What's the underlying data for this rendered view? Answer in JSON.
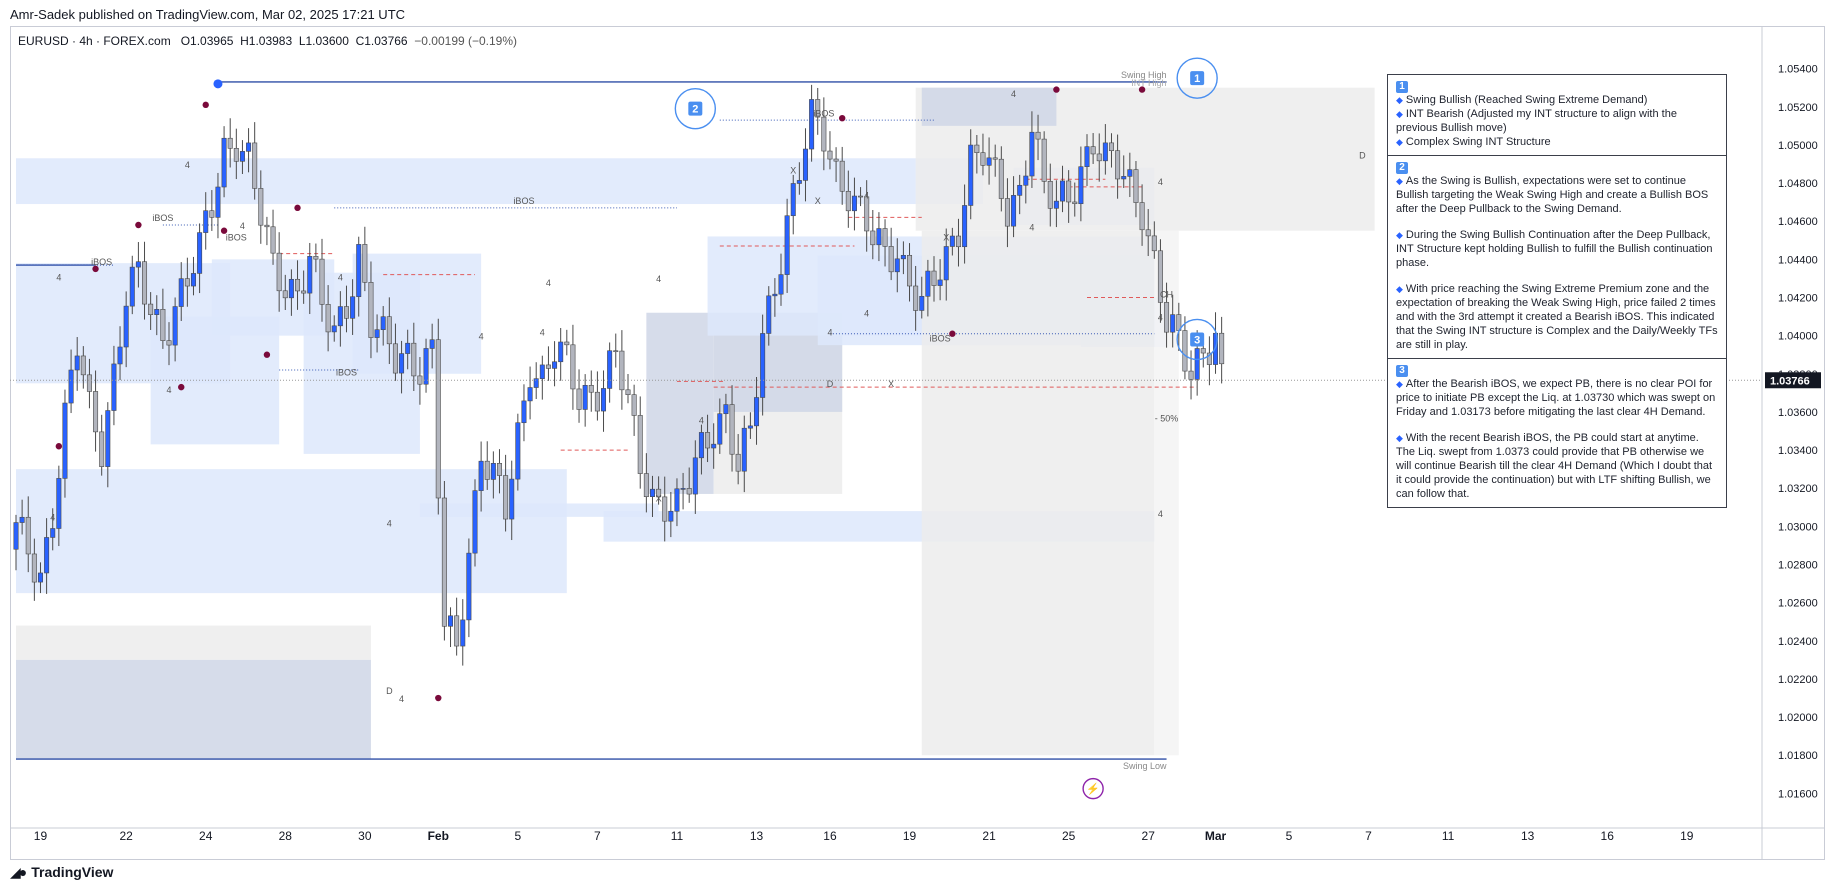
{
  "publisher": "Amr-Sadek published on TradingView.com, Mar 02, 2025 17:21 UTC",
  "legend": {
    "symbol": "EURUSD · 4h · FOREX.com",
    "open": "O1.03965",
    "high": "H1.03983",
    "low": "L1.03600",
    "close": "C1.03766",
    "change": "−0.00199 (−0.19%)"
  },
  "footer": {
    "brand": "TradingView",
    "brand_icon": "tradingview-logo-icon"
  },
  "colors": {
    "bull": "#2962ff",
    "bear": "#b2b5be",
    "zone_blue": "#dde7fb",
    "zone_grey": "#ececec",
    "swing_point": "#7a0a3b",
    "level_line": "#2e4ea6",
    "price_tag": "#131722"
  },
  "chart_data": {
    "type": "candlestick",
    "symbol": "EURUSD",
    "timeframe": "4h",
    "y_axis": {
      "min": 1.0145,
      "max": 1.0555,
      "ticks": [
        "1.05400",
        "1.05200",
        "1.05000",
        "1.04800",
        "1.04600",
        "1.04400",
        "1.04200",
        "1.04000",
        "1.03800",
        "1.03600",
        "1.03400",
        "1.03200",
        "1.03000",
        "1.02800",
        "1.02600",
        "1.02400",
        "1.02200",
        "1.02000",
        "1.01800",
        "1.01600"
      ],
      "current_price": "1.03766"
    },
    "x_axis": {
      "ticks": [
        "19",
        "22",
        "24",
        "28",
        "30",
        "Feb",
        "5",
        "7",
        "11",
        "13",
        "16",
        "19",
        "21",
        "25",
        "27",
        "Mar",
        "5",
        "7",
        "11",
        "13",
        "16",
        "19"
      ],
      "tick_index": [
        4,
        18,
        31,
        44,
        57,
        69,
        82,
        95,
        108,
        121,
        133,
        146,
        159,
        172,
        185,
        196,
        208,
        221,
        234,
        247,
        260,
        273
      ]
    },
    "close_path": [
      [
        0,
        1.0296
      ],
      [
        2,
        1.0286
      ],
      [
        4,
        1.0276
      ],
      [
        6,
        1.031
      ],
      [
        8,
        1.0355
      ],
      [
        10,
        1.0392
      ],
      [
        12,
        1.036
      ],
      [
        14,
        1.0345
      ],
      [
        16,
        1.0382
      ],
      [
        18,
        1.042
      ],
      [
        20,
        1.0428
      ],
      [
        22,
        1.0412
      ],
      [
        24,
        1.0402
      ],
      [
        26,
        1.0418
      ],
      [
        28,
        1.0428
      ],
      [
        30,
        1.0442
      ],
      [
        32,
        1.0468
      ],
      [
        34,
        1.05
      ],
      [
        36,
        1.0505
      ],
      [
        38,
        1.049
      ],
      [
        40,
        1.046
      ],
      [
        42,
        1.0435
      ],
      [
        44,
        1.043
      ],
      [
        46,
        1.0425
      ],
      [
        48,
        1.044
      ],
      [
        50,
        1.0412
      ],
      [
        52,
        1.04
      ],
      [
        54,
        1.042
      ],
      [
        56,
        1.0445
      ],
      [
        58,
        1.0405
      ],
      [
        60,
        1.0395
      ],
      [
        62,
        1.0388
      ],
      [
        64,
        1.0393
      ],
      [
        66,
        1.0386
      ],
      [
        68,
        1.039
      ],
      [
        70,
        1.0245
      ],
      [
        72,
        1.0235
      ],
      [
        74,
        1.029
      ],
      [
        76,
        1.0342
      ],
      [
        78,
        1.0325
      ],
      [
        80,
        1.0305
      ],
      [
        82,
        1.0345
      ],
      [
        84,
        1.0387
      ],
      [
        86,
        1.038
      ],
      [
        88,
        1.0392
      ],
      [
        90,
        1.0382
      ],
      [
        92,
        1.0366
      ],
      [
        94,
        1.0372
      ],
      [
        96,
        1.0378
      ],
      [
        98,
        1.039
      ],
      [
        100,
        1.036
      ],
      [
        102,
        1.0332
      ],
      [
        104,
        1.0318
      ],
      [
        106,
        1.0315
      ],
      [
        108,
        1.0308
      ],
      [
        110,
        1.032
      ],
      [
        112,
        1.034
      ],
      [
        114,
        1.0356
      ],
      [
        116,
        1.0362
      ],
      [
        118,
        1.033
      ],
      [
        120,
        1.0345
      ],
      [
        122,
        1.04
      ],
      [
        124,
        1.043
      ],
      [
        126,
        1.0462
      ],
      [
        128,
        1.0485
      ],
      [
        130,
        1.051
      ],
      [
        132,
        1.0505
      ],
      [
        134,
        1.0488
      ],
      [
        136,
        1.0478
      ],
      [
        138,
        1.0462
      ],
      [
        140,
        1.0448
      ],
      [
        142,
        1.0442
      ],
      [
        144,
        1.0448
      ],
      [
        146,
        1.043
      ],
      [
        148,
        1.0415
      ],
      [
        150,
        1.0425
      ],
      [
        152,
        1.044
      ],
      [
        154,
        1.046
      ],
      [
        156,
        1.0495
      ],
      [
        158,
        1.0495
      ],
      [
        160,
        1.0478
      ],
      [
        162,
        1.0465
      ],
      [
        164,
        1.0478
      ],
      [
        166,
        1.0515
      ],
      [
        168,
        1.0475
      ],
      [
        170,
        1.0465
      ],
      [
        172,
        1.0472
      ],
      [
        174,
        1.049
      ],
      [
        176,
        1.0505
      ],
      [
        178,
        1.049
      ],
      [
        180,
        1.0485
      ],
      [
        182,
        1.0478
      ],
      [
        184,
        1.047
      ],
      [
        186,
        1.044
      ],
      [
        188,
        1.0405
      ],
      [
        190,
        1.0392
      ],
      [
        192,
        1.038
      ],
      [
        194,
        1.0396
      ],
      [
        196,
        1.0403
      ],
      [
        197,
        1.03766
      ]
    ],
    "swing_points": [
      {
        "i": 7,
        "v": 1.0342
      },
      {
        "i": 13,
        "v": 1.0435
      },
      {
        "i": 20,
        "v": 1.0458
      },
      {
        "i": 27,
        "v": 1.0373
      },
      {
        "i": 31,
        "v": 1.0521
      },
      {
        "i": 34,
        "v": 1.0455
      },
      {
        "i": 41,
        "v": 1.039
      },
      {
        "i": 46,
        "v": 1.0467
      },
      {
        "i": 69,
        "v": 1.021
      },
      {
        "i": 135,
        "v": 1.0514
      },
      {
        "i": 153,
        "v": 1.0401
      },
      {
        "i": 170,
        "v": 1.0529
      },
      {
        "i": 184,
        "v": 1.0529
      }
    ],
    "swing_high_anchor": {
      "i": 33,
      "v": 1.0532
    },
    "zones": [
      {
        "kind": "blue",
        "i0": 0,
        "i1": 158,
        "v0": 1.0493,
        "v1": 1.0469
      },
      {
        "kind": "blue",
        "i0": 0,
        "i1": 35,
        "v0": 1.0438,
        "v1": 1.0375
      },
      {
        "kind": "blue",
        "i0": 32,
        "i1": 52,
        "v0": 1.044,
        "v1": 1.04
      },
      {
        "kind": "blue",
        "i0": 22,
        "i1": 43,
        "v0": 1.041,
        "v1": 1.0343
      },
      {
        "kind": "blue",
        "i0": 55,
        "i1": 76,
        "v0": 1.0443,
        "v1": 1.038
      },
      {
        "kind": "blue",
        "i0": 47,
        "i1": 66,
        "v0": 1.0433,
        "v1": 1.0338
      },
      {
        "kind": "blue",
        "i0": 0,
        "i1": 90,
        "v0": 1.033,
        "v1": 1.0265
      },
      {
        "kind": "grey",
        "i0": 0,
        "i1": 58,
        "v0": 1.0248,
        "v1": 1.023
      },
      {
        "kind": "slate",
        "i0": 0,
        "i1": 58,
        "v0": 1.023,
        "v1": 1.0178
      },
      {
        "kind": "blue",
        "i0": 66,
        "i1": 105,
        "v0": 1.0312,
        "v1": 1.0305
      },
      {
        "kind": "blue",
        "i0": 96,
        "i1": 186,
        "v0": 1.0308,
        "v1": 1.0292
      },
      {
        "kind": "slate",
        "i0": 103,
        "i1": 114,
        "v0": 1.0412,
        "v1": 1.0317
      },
      {
        "kind": "grey",
        "i0": 114,
        "i1": 135,
        "v0": 1.0412,
        "v1": 1.0317
      },
      {
        "kind": "slate",
        "i0": 114,
        "i1": 135,
        "v0": 1.0412,
        "v1": 1.036
      },
      {
        "kind": "blue",
        "i0": 113,
        "i1": 186,
        "v0": 1.0452,
        "v1": 1.04
      },
      {
        "kind": "blue",
        "i0": 131,
        "i1": 186,
        "v0": 1.0442,
        "v1": 1.0395
      },
      {
        "kind": "blue",
        "i0": 163,
        "i1": 186,
        "v0": 1.0488,
        "v1": 1.0458
      },
      {
        "kind": "grey",
        "i0": 147,
        "i1": 222,
        "v0": 1.053,
        "v1": 1.0455
      },
      {
        "kind": "slate",
        "i0": 148,
        "i1": 170,
        "v0": 1.053,
        "v1": 1.051
      },
      {
        "kind": "blue",
        "i0": 174,
        "i1": 188,
        "v0": 1.042,
        "v1": 1.0394
      },
      {
        "kind": "grey",
        "i0": 148,
        "i1": 186,
        "v0": 1.0455,
        "v1": 1.018
      },
      {
        "kind": "light",
        "i0": 186,
        "i1": 190,
        "v0": 1.0455,
        "v1": 1.018
      }
    ],
    "lines": [
      {
        "kind": "level",
        "i0": 33,
        "i1": 188,
        "v": 1.0533
      },
      {
        "kind": "level",
        "i0": 0,
        "i1": 188,
        "v": 1.0178
      },
      {
        "kind": "level",
        "i0": 0,
        "i1": 13,
        "v": 1.0437
      },
      {
        "kind": "dot",
        "i0": 24,
        "i1": 33,
        "v": 1.0458
      },
      {
        "kind": "dot",
        "i0": 52,
        "i1": 108,
        "v": 1.0467
      },
      {
        "kind": "dot",
        "i0": 115,
        "i1": 150,
        "v": 1.0513
      },
      {
        "kind": "dot",
        "i0": 0,
        "i1": 16,
        "v": 1.0437
      },
      {
        "kind": "dot",
        "i0": 43,
        "i1": 56,
        "v": 1.0382
      },
      {
        "kind": "dot",
        "i0": 133,
        "i1": 186,
        "v": 1.0401
      },
      {
        "kind": "red",
        "i0": 60,
        "i1": 75,
        "v": 1.0432
      },
      {
        "kind": "red",
        "i0": 43,
        "i1": 52,
        "v": 1.0443
      },
      {
        "kind": "red",
        "i0": 108,
        "i1": 116,
        "v": 1.0376
      },
      {
        "kind": "red",
        "i0": 89,
        "i1": 100,
        "v": 1.034
      },
      {
        "kind": "red",
        "i0": 114,
        "i1": 193,
        "v": 1.0373
      },
      {
        "kind": "red",
        "i0": 165,
        "i1": 178,
        "v": 1.0482
      },
      {
        "kind": "red",
        "i0": 172,
        "i1": 184,
        "v": 1.0478
      },
      {
        "kind": "red",
        "i0": 175,
        "i1": 186,
        "v": 1.042
      },
      {
        "kind": "red",
        "i0": 115,
        "i1": 137,
        "v": 1.0447
      },
      {
        "kind": "red",
        "i0": 136,
        "i1": 148,
        "v": 1.0462
      }
    ],
    "labels": [
      {
        "t": "iBOS",
        "i": 24,
        "v": 1.046
      },
      {
        "t": "iBOS",
        "i": 14,
        "v": 1.0437
      },
      {
        "t": "iBOS",
        "i": 36,
        "v": 1.045
      },
      {
        "t": "iBOS",
        "i": 83,
        "v": 1.0469
      },
      {
        "t": "iBOS",
        "i": 54,
        "v": 1.0379
      },
      {
        "t": "iBOS",
        "i": 132,
        "v": 1.0515
      },
      {
        "t": "iBOS",
        "i": 151,
        "v": 1.0397
      },
      {
        "t": "D",
        "i": 61,
        "v": 1.0212
      },
      {
        "t": "D",
        "i": 133,
        "v": 1.0373
      },
      {
        "t": "D",
        "i": 220,
        "v": 1.0493
      },
      {
        "t": "X",
        "i": 105,
        "v": 1.0313
      },
      {
        "t": "X",
        "i": 143,
        "v": 1.0373
      },
      {
        "t": "X",
        "i": 152,
        "v": 1.045
      },
      {
        "t": "X",
        "i": 127,
        "v": 1.0485
      },
      {
        "t": "X",
        "i": 131,
        "v": 1.0469
      },
      {
        "t": "CH",
        "i": 188,
        "v": 1.042
      },
      {
        "t": "4",
        "i": 7,
        "v": 1.0429
      },
      {
        "t": "4",
        "i": 25,
        "v": 1.037
      },
      {
        "t": "4",
        "i": 28,
        "v": 1.0488
      },
      {
        "t": "4",
        "i": 37,
        "v": 1.0456
      },
      {
        "t": "4",
        "i": 53,
        "v": 1.0429
      },
      {
        "t": "4",
        "i": 76,
        "v": 1.0398
      },
      {
        "t": "4",
        "i": 87,
        "v": 1.0426
      },
      {
        "t": "4",
        "i": 61,
        "v": 1.03
      },
      {
        "t": "4",
        "i": 63,
        "v": 1.0208
      },
      {
        "t": "4",
        "i": 112,
        "v": 1.0354
      },
      {
        "t": "4",
        "i": 139,
        "v": 1.041
      },
      {
        "t": "4",
        "i": 139,
        "v": 1.0472
      },
      {
        "t": "4",
        "i": 166,
        "v": 1.0455
      },
      {
        "t": "4",
        "i": 163,
        "v": 1.0525
      },
      {
        "t": "4",
        "i": 187,
        "v": 1.0479
      },
      {
        "t": "4",
        "i": 187,
        "v": 1.0408
      },
      {
        "t": "4",
        "i": 187,
        "v": 1.0305
      },
      {
        "t": "4",
        "i": 6,
        "v": 1.0303
      },
      {
        "t": "4",
        "i": 105,
        "v": 1.0428
      },
      {
        "t": "4",
        "i": 133,
        "v": 1.04
      },
      {
        "t": "4",
        "i": 86,
        "v": 1.04
      },
      {
        "t": "- 50%",
        "i": 188,
        "v": 1.0355
      }
    ],
    "swing_high_label": "Swing High",
    "int_high_label": "INT High",
    "swing_low_label": "Swing Low",
    "circles": [
      {
        "n": "1",
        "i": 193,
        "v": 1.0535
      },
      {
        "n": "2",
        "i": 111,
        "v": 1.0519
      },
      {
        "n": "3",
        "i": 193,
        "v": 1.0398
      }
    ],
    "bolt": {
      "i": 176,
      "v": 1.01625
    }
  },
  "notes": {
    "sections": [
      {
        "badge": "1",
        "items": [
          "Swing Bullish (Reached Swing Extreme Demand)",
          "INT Bearish (Adjusted my INT structure to align with the previous Bullish move)",
          "Complex Swing INT Structure"
        ]
      },
      {
        "badge": "2",
        "items": [
          "As the Swing is Bullish, expectations were set to continue Bullish targeting the Weak Swing High and create a Bullish BOS after the Deep Pullback to the Swing Demand.",
          "During the Swing Bullish Continuation after the Deep Pullback, INT Structure kept holding Bullish to fulfill the Bullish continuation phase.",
          "With price reaching the Swing Extreme Premium zone and the expectation of breaking the Weak Swing High, price failed 2 times and with the 3rd attempt it created a Bearish iBOS. This indicated that the Swing INT structure is Complex and the Daily/Weekly TFs are still in play."
        ]
      },
      {
        "badge": "3",
        "items": [
          "After the Bearish iBOS, we expect PB, there is no clear POI for price to initiate PB except the Liq. at 1.03730 which was swept on Friday and 1.03173 before mitigating the last clear 4H Demand.",
          "With the recent Bearish iBOS, the PB could start at anytime. The Liq. swept from 1.0373 could provide that PB otherwise we will continue Bearish till the clear 4H Demand (Which I doubt that it could provide the continuation) but with LTF shifting Bullish, we can follow that."
        ]
      }
    ]
  }
}
